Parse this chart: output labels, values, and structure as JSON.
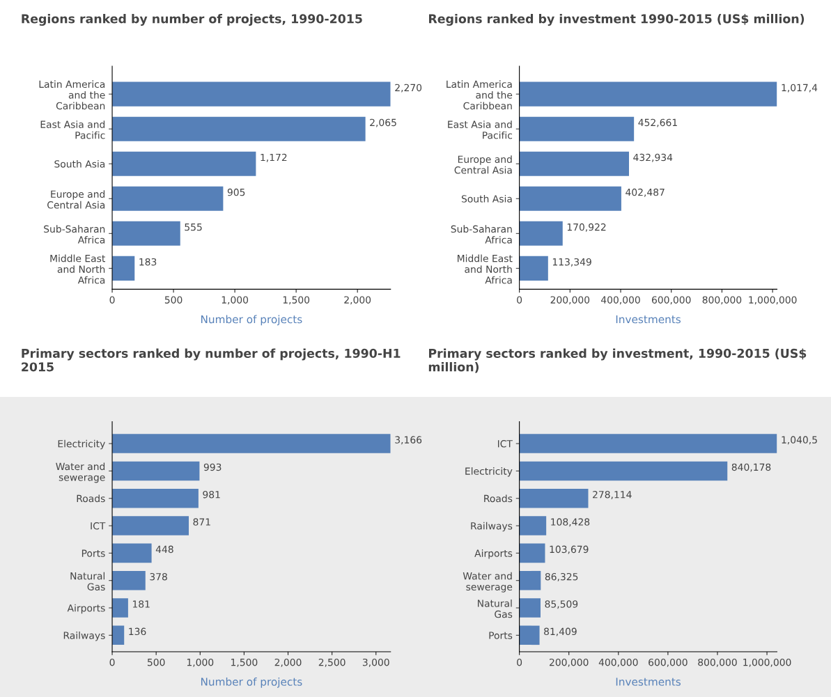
{
  "chart_data": [
    {
      "type": "bar",
      "orientation": "horizontal",
      "title": "Regions ranked by number of projects, 1990-2015",
      "xlabel": "Number of projects",
      "color": "#5680b8",
      "categories": [
        "Latin America\nand the\nCaribbean",
        "East Asia and\nPacific",
        "South Asia",
        "Europe and\nCentral Asia",
        "Sub-Saharan\nAfrica",
        "Middle East\nand North\nAfrica"
      ],
      "values": [
        2270,
        2065,
        1172,
        905,
        555,
        183
      ],
      "value_labels": [
        "2,270",
        "2,065",
        "1,172",
        "905",
        "555",
        "183"
      ],
      "xlim": [
        0,
        2270
      ],
      "xticks": [
        0,
        500,
        {
          "value": 1000,
          "label": "1,000"
        },
        {
          "value": 1500,
          "label": "1,500"
        },
        {
          "value": 2000,
          "label": "2,000"
        }
      ],
      "grid": false
    },
    {
      "type": "bar",
      "orientation": "horizontal",
      "title": "Regions ranked by investment 1990-2015 (US$ million)",
      "xlabel": "Investments",
      "color": "#5680b8",
      "categories": [
        "Latin America\nand the\nCaribbean",
        "East Asia and\nPacific",
        "Europe and\nCentral Asia",
        "South Asia",
        "Sub-Saharan\nAfrica",
        "Middle East\nand North\nAfrica"
      ],
      "values": [
        1017400,
        452661,
        432934,
        402487,
        170922,
        113349
      ],
      "value_labels": [
        "1,017,4",
        "452,661",
        "432,934",
        "402,487",
        "170,922",
        "113,349"
      ],
      "xlim": [
        0,
        1017400
      ],
      "xticks": [
        0,
        {
          "value": 200000,
          "label": "200,000"
        },
        {
          "value": 400000,
          "label": "400,000"
        },
        {
          "value": 600000,
          "label": "600,000"
        },
        {
          "value": 800000,
          "label": "800,000"
        },
        {
          "value": 1000000,
          "label": "1,000,000"
        }
      ],
      "grid": false
    },
    {
      "type": "bar",
      "orientation": "horizontal",
      "title": "Primary sectors ranked by number of projects, 1990-H1\n2015",
      "xlabel": "Number of projects",
      "color": "#5680b8",
      "categories": [
        "Electricity",
        "Water and\nsewerage",
        "Roads",
        "ICT",
        "Ports",
        "Natural\nGas",
        "Airports",
        "Railways"
      ],
      "values": [
        3166,
        993,
        981,
        871,
        448,
        378,
        181,
        136
      ],
      "value_labels": [
        "3,166",
        "993",
        "981",
        "871",
        "448",
        "378",
        "181",
        "136"
      ],
      "xlim": [
        0,
        3166
      ],
      "xticks": [
        0,
        500,
        {
          "value": 1000,
          "label": "1,000"
        },
        {
          "value": 1500,
          "label": "1,500"
        },
        {
          "value": 2000,
          "label": "2,000"
        },
        {
          "value": 2500,
          "label": "2,500"
        },
        {
          "value": 3000,
          "label": "3,000"
        }
      ],
      "grid": false
    },
    {
      "type": "bar",
      "orientation": "horizontal",
      "title": "Primary sectors ranked by investment, 1990-2015 (US$\nmillion)",
      "xlabel": "Investments",
      "color": "#5680b8",
      "categories": [
        "ICT",
        "Electricity",
        "Roads",
        "Railways",
        "Airports",
        "Water and\nsewerage",
        "Natural\nGas",
        "Ports"
      ],
      "values": [
        1040500,
        840178,
        278114,
        108428,
        103679,
        86325,
        85509,
        81409
      ],
      "value_labels": [
        "1,040,5",
        "840,178",
        "278,114",
        "108,428",
        "103,679",
        "86,325",
        "85,509",
        "81,409"
      ],
      "xlim": [
        0,
        1040500
      ],
      "xticks": [
        0,
        {
          "value": 200000,
          "label": "200,000"
        },
        {
          "value": 400000,
          "label": "400,000"
        },
        {
          "value": 600000,
          "label": "600,000"
        },
        {
          "value": 800000,
          "label": "800,000"
        },
        {
          "value": 1000000,
          "label": "1,000,000"
        }
      ],
      "grid": false
    }
  ]
}
